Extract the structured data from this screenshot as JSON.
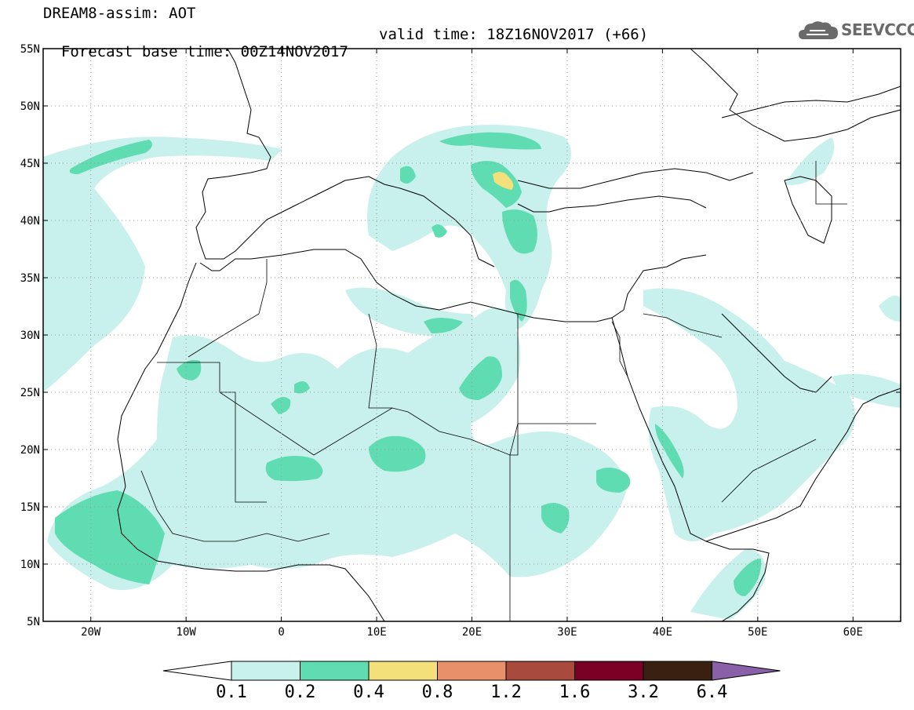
{
  "header": {
    "title_line1": "DREAM8-assim: AOT",
    "forecast_text": "Forecast base time: 00Z14NOV2017",
    "valid_text": "valid time: 18Z16NOV2017 (+66)",
    "logo_text": "SEEVCCC"
  },
  "map": {
    "lon_range": [
      -25,
      65
    ],
    "lat_range": [
      5,
      55
    ],
    "lat_labels": [
      "55N",
      "50N",
      "45N",
      "40N",
      "35N",
      "30N",
      "25N",
      "20N",
      "15N",
      "10N",
      "5N"
    ],
    "lon_labels": [
      "20W",
      "10W",
      "0",
      "10E",
      "20E",
      "30E",
      "40E",
      "50E",
      "60E"
    ],
    "field": "AOT (aerosol optical thickness)",
    "colors": {
      "level_0_1": "#c8f0ec",
      "level_0_2": "#5fdcb2",
      "level_0_4": "#f4e07a"
    }
  },
  "colorbar": {
    "labels": [
      "0.1",
      "0.2",
      "0.4",
      "0.8",
      "1.2",
      "1.6",
      "3.2",
      "6.4"
    ],
    "colors": [
      "#c8f0ec",
      "#5fdcb2",
      "#f4e07a",
      "#e8906a",
      "#a84a3c",
      "#7a0026",
      "#3a2010",
      "#8a60a8"
    ]
  }
}
